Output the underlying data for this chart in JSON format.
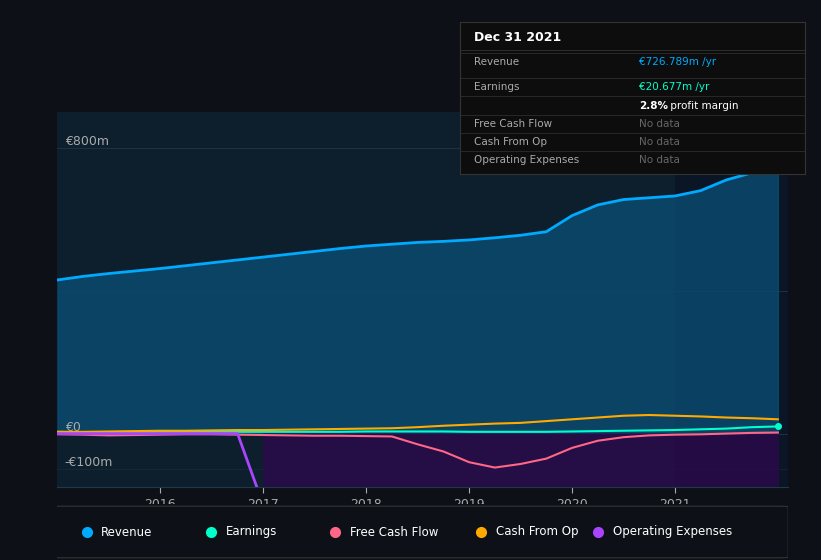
{
  "bg_color": "#0d1117",
  "plot_bg_color": "#0d1f2d",
  "highlight_bg_color": "#0a1a2e",
  "grid_color": "#1e3a4a",
  "title_text": "Dec 31 2021",
  "table_data": {
    "Revenue": {
      "value": "€726.789m /yr",
      "color": "#00d4ff"
    },
    "Earnings": {
      "value": "€20.677m /yr",
      "color": "#00d4ff"
    },
    "profit_margin": "2.8% profit margin",
    "Free Cash Flow": "No data",
    "Cash From Op": "No data",
    "Operating Expenses": "No data"
  },
  "ylabel_800": "€800m",
  "ylabel_0": "€0",
  "ylabel_neg100": "-€100m",
  "x_years": [
    2015.0,
    2015.25,
    2015.5,
    2015.75,
    2016.0,
    2016.25,
    2016.5,
    2016.75,
    2017.0,
    2017.25,
    2017.5,
    2017.75,
    2018.0,
    2018.25,
    2018.5,
    2018.75,
    2019.0,
    2019.25,
    2019.5,
    2019.75,
    2020.0,
    2020.25,
    2020.5,
    2020.75,
    2021.0,
    2021.25,
    2021.5,
    2021.75,
    2022.0
  ],
  "revenue": [
    430,
    440,
    448,
    455,
    462,
    470,
    478,
    486,
    494,
    502,
    510,
    518,
    525,
    530,
    535,
    538,
    542,
    548,
    555,
    565,
    610,
    640,
    655,
    660,
    665,
    680,
    710,
    730,
    750
  ],
  "earnings": [
    5,
    4,
    4,
    4,
    5,
    5,
    5,
    5,
    5,
    5,
    5,
    5,
    6,
    6,
    6,
    6,
    5,
    5,
    5,
    5,
    6,
    7,
    8,
    9,
    10,
    12,
    14,
    18,
    20
  ],
  "free_cash_flow": [
    -2,
    -3,
    -5,
    -4,
    -3,
    -2,
    -2,
    -3,
    -4,
    -5,
    -6,
    -6,
    -7,
    -8,
    -30,
    -50,
    -80,
    -95,
    -85,
    -70,
    -40,
    -20,
    -10,
    -5,
    -3,
    -2,
    0,
    2,
    3
  ],
  "cash_from_op": [
    5,
    5,
    6,
    7,
    8,
    8,
    9,
    10,
    10,
    11,
    12,
    13,
    14,
    15,
    18,
    22,
    25,
    28,
    30,
    35,
    40,
    45,
    50,
    52,
    50,
    48,
    45,
    43,
    40
  ],
  "operating_expenses": [
    0,
    0,
    0,
    0,
    0,
    0,
    0,
    0,
    -200,
    -210,
    -215,
    -220,
    -225,
    -230,
    -235,
    -238,
    -240,
    -245,
    -255,
    -260,
    -270,
    -290,
    -305,
    -310,
    -315,
    -310,
    -280,
    -220,
    -180
  ],
  "revenue_color": "#00aaff",
  "earnings_color": "#00ffcc",
  "fcf_color": "#ff6688",
  "cashop_color": "#ffaa00",
  "opex_color": "#aa44ff",
  "revenue_fill_color": "#0a4a6e",
  "opex_fill_color": "#2a0a4a",
  "highlight_start": 2021.0,
  "legend_entries": [
    "Revenue",
    "Earnings",
    "Free Cash Flow",
    "Cash From Op",
    "Operating Expenses"
  ],
  "legend_colors": [
    "#00aaff",
    "#00ffcc",
    "#ff6688",
    "#ffaa00",
    "#aa44ff"
  ],
  "x_tick_labels": [
    "2016",
    "2017",
    "2018",
    "2019",
    "2020",
    "2021"
  ],
  "x_tick_positions": [
    2016,
    2017,
    2018,
    2019,
    2020,
    2021
  ],
  "ylim": [
    -150,
    900
  ],
  "xlim": [
    2015.0,
    2022.1
  ]
}
